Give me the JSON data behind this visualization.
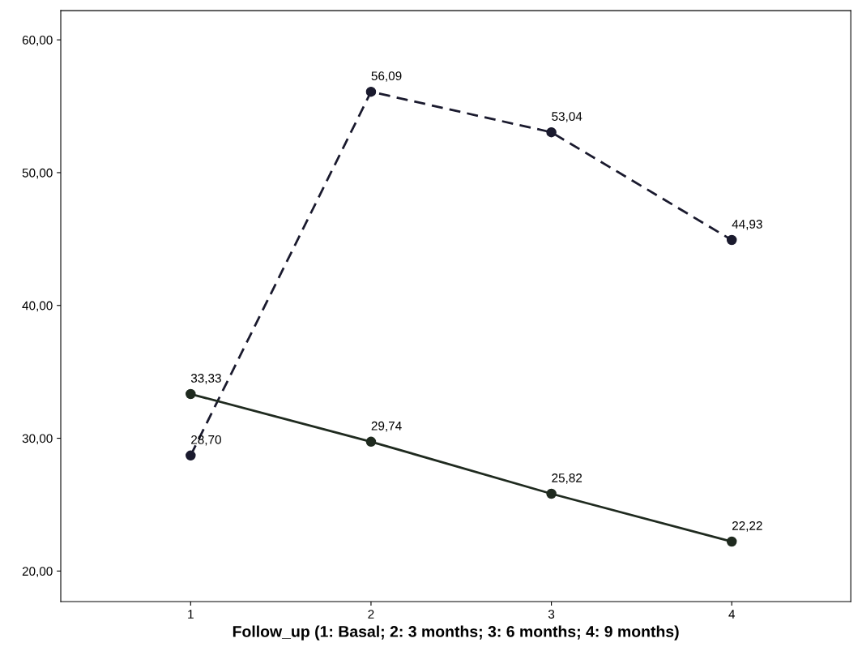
{
  "chart_data": {
    "type": "line",
    "xlabel": "Follow_up (1: Basal; 2: 3 months; 3: 6 months; 4: 9 months)",
    "x": [
      1,
      2,
      3,
      4
    ],
    "series": [
      {
        "color": "#1a1a2e",
        "values": [
          28.7,
          56.09,
          53.04,
          44.93
        ],
        "line_style": "dashed",
        "value_labels": [
          "28,70",
          "56,09",
          "53,04",
          "44,93"
        ]
      },
      {
        "color": "#1f2a1f",
        "values": [
          33.33,
          29.74,
          25.82,
          22.22
        ],
        "line_style": "solid",
        "value_labels": [
          "33,33",
          "29,74",
          "25,82",
          "22,22"
        ]
      }
    ],
    "xlim": [
      0.28,
      4.66
    ],
    "ylim": [
      17.7,
      62.2
    ],
    "xticks": [
      1,
      2,
      3,
      4
    ],
    "yticks": [
      {
        "value": 20,
        "label": "20,00"
      },
      {
        "value": 30,
        "label": "30,00"
      },
      {
        "value": 40,
        "label": "40,00"
      },
      {
        "value": 50,
        "label": "50,00"
      },
      {
        "value": 60,
        "label": "60,00"
      }
    ],
    "marker": "circle",
    "grid": false,
    "legend": false
  }
}
